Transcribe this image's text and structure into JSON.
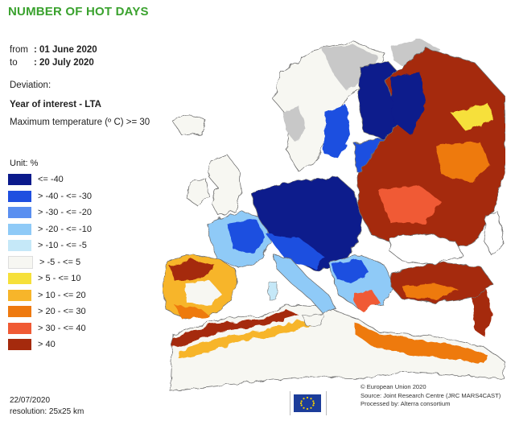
{
  "title": "NUMBER OF HOT DAYS",
  "period": {
    "from_label": "from",
    "from_value": ": 01 June 2020",
    "to_label": "to",
    "to_value": ": 20 July 2020"
  },
  "deviation_label": "Deviation:",
  "comparison": "Year of interest - LTA",
  "condition": "Maximum temperature (º C) >= 30",
  "legend": {
    "unit": "Unit: %",
    "items": [
      {
        "label": "<= -40",
        "color": "#0b1a8c"
      },
      {
        "label": "> -40 - <= -30",
        "color": "#1f4fe0"
      },
      {
        "label": "> -30 - <= -20",
        "color": "#5a8ff0"
      },
      {
        "label": "> -20 - <= -10",
        "color": "#8fcaf7"
      },
      {
        "label": "> -10 - <= -5",
        "color": "#c5e8f8"
      },
      {
        "label": "> -5 - <= 5",
        "color": "#f7f7f2"
      },
      {
        "label": "> 5 - <= 10",
        "color": "#f6e03a"
      },
      {
        "label": "> 10 - <= 20",
        "color": "#f7b52a"
      },
      {
        "label": "> 20 - <= 30",
        "color": "#ee7a10"
      },
      {
        "label": "> 30 - <= 40",
        "color": "#f05a34"
      },
      {
        "label": "> 40",
        "color": "#a52a0d"
      }
    ]
  },
  "footer": {
    "date": "22/07/2020",
    "resolution": "resolution: 25x25 km",
    "credit_1": "© European Union 2020",
    "credit_2": "Source: Joint Research Centre (JRC MARS4CAST)",
    "credit_3": "Processed by: Alterra consortium"
  },
  "colors": {
    "title": "#3aa22e",
    "sea": "#ffffff",
    "land_outline": "#6e6e6e",
    "no_data": "#c8c8c8"
  }
}
